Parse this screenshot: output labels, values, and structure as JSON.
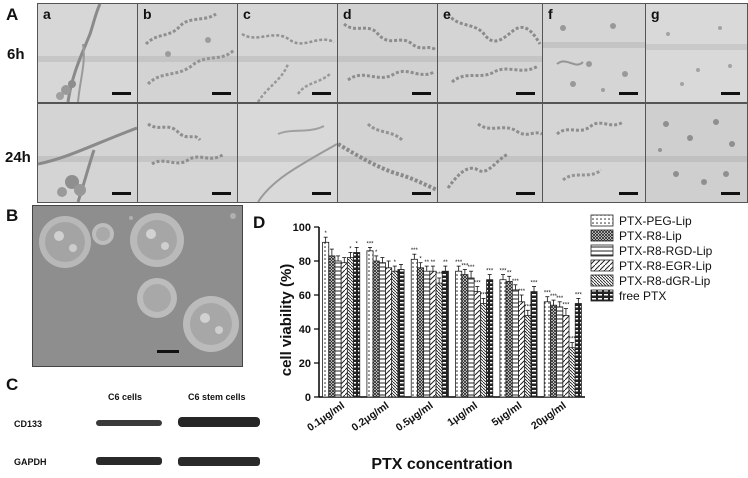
{
  "panels": {
    "A": "A",
    "B": "B",
    "C": "C",
    "D": "D"
  },
  "panel_a": {
    "rows": [
      "6h",
      "24h"
    ],
    "columns": [
      "a",
      "b",
      "c",
      "d",
      "e",
      "f",
      "g"
    ]
  },
  "panel_c": {
    "columns": [
      "C6 cells",
      "C6 stem cells"
    ],
    "rows": [
      "CD133",
      "GAPDH"
    ]
  },
  "colors": {
    "bar_outline": "#222222",
    "axis": "#000000"
  },
  "chart_data": {
    "type": "bar",
    "ylabel": "cell viability (%)",
    "xlabel": "PTX concentration",
    "ylim": [
      0,
      100
    ],
    "yticks": [
      0,
      20,
      40,
      60,
      80,
      100
    ],
    "categories": [
      "0.1μg/ml",
      "0.2μg/ml",
      "0.5μg/ml",
      "1μg/ml",
      "5μg/ml",
      "20μg/ml"
    ],
    "series": [
      {
        "name": "PTX-PEG-Lip",
        "pattern": "dots",
        "values": [
          91,
          86,
          81,
          74,
          69,
          56
        ],
        "significance": [
          "*",
          "***",
          "***",
          "***",
          "***",
          "***"
        ]
      },
      {
        "name": "PTX-R8-Lip",
        "pattern": "grid",
        "values": [
          83,
          80,
          76,
          72,
          68,
          54
        ],
        "significance": [
          "",
          "*",
          "*",
          "***",
          "**",
          "***"
        ]
      },
      {
        "name": "PTX-R8-RGD-Lip",
        "pattern": "hlines",
        "values": [
          80,
          79,
          74,
          70,
          63,
          53
        ],
        "significance": [
          "",
          "",
          "**",
          "***",
          "***",
          "***"
        ]
      },
      {
        "name": "PTX-R8-EGR-Lip",
        "pattern": "diag",
        "values": [
          79,
          76,
          74,
          62,
          56,
          48
        ],
        "significance": [
          "",
          "",
          "**",
          "***",
          "***",
          "***"
        ]
      },
      {
        "name": "PTX-R8-dGR-Lip",
        "pattern": "diag-dense",
        "values": [
          82,
          74,
          67,
          55,
          48,
          29
        ],
        "significance": [
          "*",
          "*",
          "***",
          "***",
          "***",
          "***"
        ]
      },
      {
        "name": "free PTX",
        "pattern": "bricks",
        "values": [
          85,
          75,
          74,
          69,
          62,
          55
        ],
        "significance": [
          "*",
          "",
          "**",
          "***",
          "***",
          "***"
        ]
      }
    ],
    "errors": [
      [
        3,
        2,
        3,
        3,
        3,
        3
      ],
      [
        4,
        3,
        3,
        3,
        3,
        3
      ],
      [
        3,
        3,
        3,
        4,
        3,
        3
      ],
      [
        3,
        4,
        3,
        3,
        4,
        4
      ],
      [
        3,
        3,
        3,
        3,
        3,
        3
      ],
      [
        3,
        3,
        3,
        3,
        3,
        3
      ]
    ],
    "legend_position": "top-right"
  }
}
